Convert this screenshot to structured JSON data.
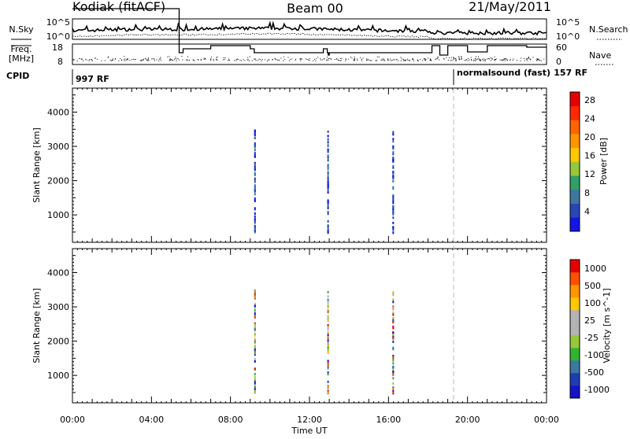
{
  "header": {
    "station": "Kodiak (fitACF)",
    "beam": "Beam 00",
    "date": "21/May/2011"
  },
  "nsky_panel": {
    "left_label": "N.Sky",
    "right_label": "N.Search",
    "left_ticks": [
      "10^5",
      "10^0"
    ],
    "right_ticks": [
      "10^5",
      "10^0"
    ]
  },
  "freq_panel": {
    "left_label_line1": "Freq.",
    "left_label_line2": "[MHz]",
    "right_label": "Nave",
    "left_ticks": [
      "18",
      "8"
    ],
    "right_ticks": [
      "60",
      "0"
    ]
  },
  "cpid": {
    "label": "CPID",
    "segment_1": "997 RF",
    "segment_2": "normalsound (fast)",
    "segment_2_id": "157 RF"
  },
  "time_axis": {
    "ticks": [
      "00:00",
      "04:00",
      "08:00",
      "12:00",
      "16:00",
      "20:00",
      "00:00"
    ],
    "label": "Time UT"
  },
  "colors": {
    "power_scale": [
      "#1414e6",
      "#2846b4",
      "#3c78a0",
      "#32a064",
      "#96c83c",
      "#ffc800",
      "#ff9600",
      "#ff6400",
      "#ff2800",
      "#e60000"
    ],
    "velocity_scale": [
      "#e60000",
      "#ff5000",
      "#ff9600",
      "#ffc800",
      "#b4b4b4",
      "#b4b4b4",
      "#96c83c",
      "#32b432",
      "#3c78a0",
      "#1e3cb4",
      "#1414c8"
    ]
  },
  "chart_data": [
    {
      "type": "heatmap",
      "title": "",
      "xlabel": "Time UT",
      "ylabel": "Slant Range [km]",
      "x_ticks": [
        "00:00",
        "04:00",
        "08:00",
        "12:00",
        "16:00",
        "20:00",
        "00:00"
      ],
      "y_ticks": [
        1000,
        2000,
        3000,
        4000
      ],
      "ylim": [
        200,
        4700
      ],
      "xlim_hours": [
        0,
        24
      ],
      "colorbar": {
        "label": "Power [dB]",
        "ticks": [
          "4",
          "8",
          "12",
          "16",
          "20",
          "24",
          "28"
        ],
        "range": [
          0,
          30
        ]
      }
    },
    {
      "type": "heatmap",
      "title": "",
      "xlabel": "Time UT",
      "ylabel": "Slant Range [km]",
      "x_ticks": [
        "00:00",
        "04:00",
        "08:00",
        "12:00",
        "16:00",
        "20:00",
        "00:00"
      ],
      "y_ticks": [
        1000,
        2000,
        3000,
        4000
      ],
      "ylim": [
        200,
        4700
      ],
      "xlim_hours": [
        0,
        24
      ],
      "colorbar": {
        "label": "Velocity [m s^-1]",
        "ticks": [
          "1000",
          "500",
          "100",
          "25",
          "-25",
          "-100",
          "-500",
          "-1000"
        ]
      }
    }
  ]
}
